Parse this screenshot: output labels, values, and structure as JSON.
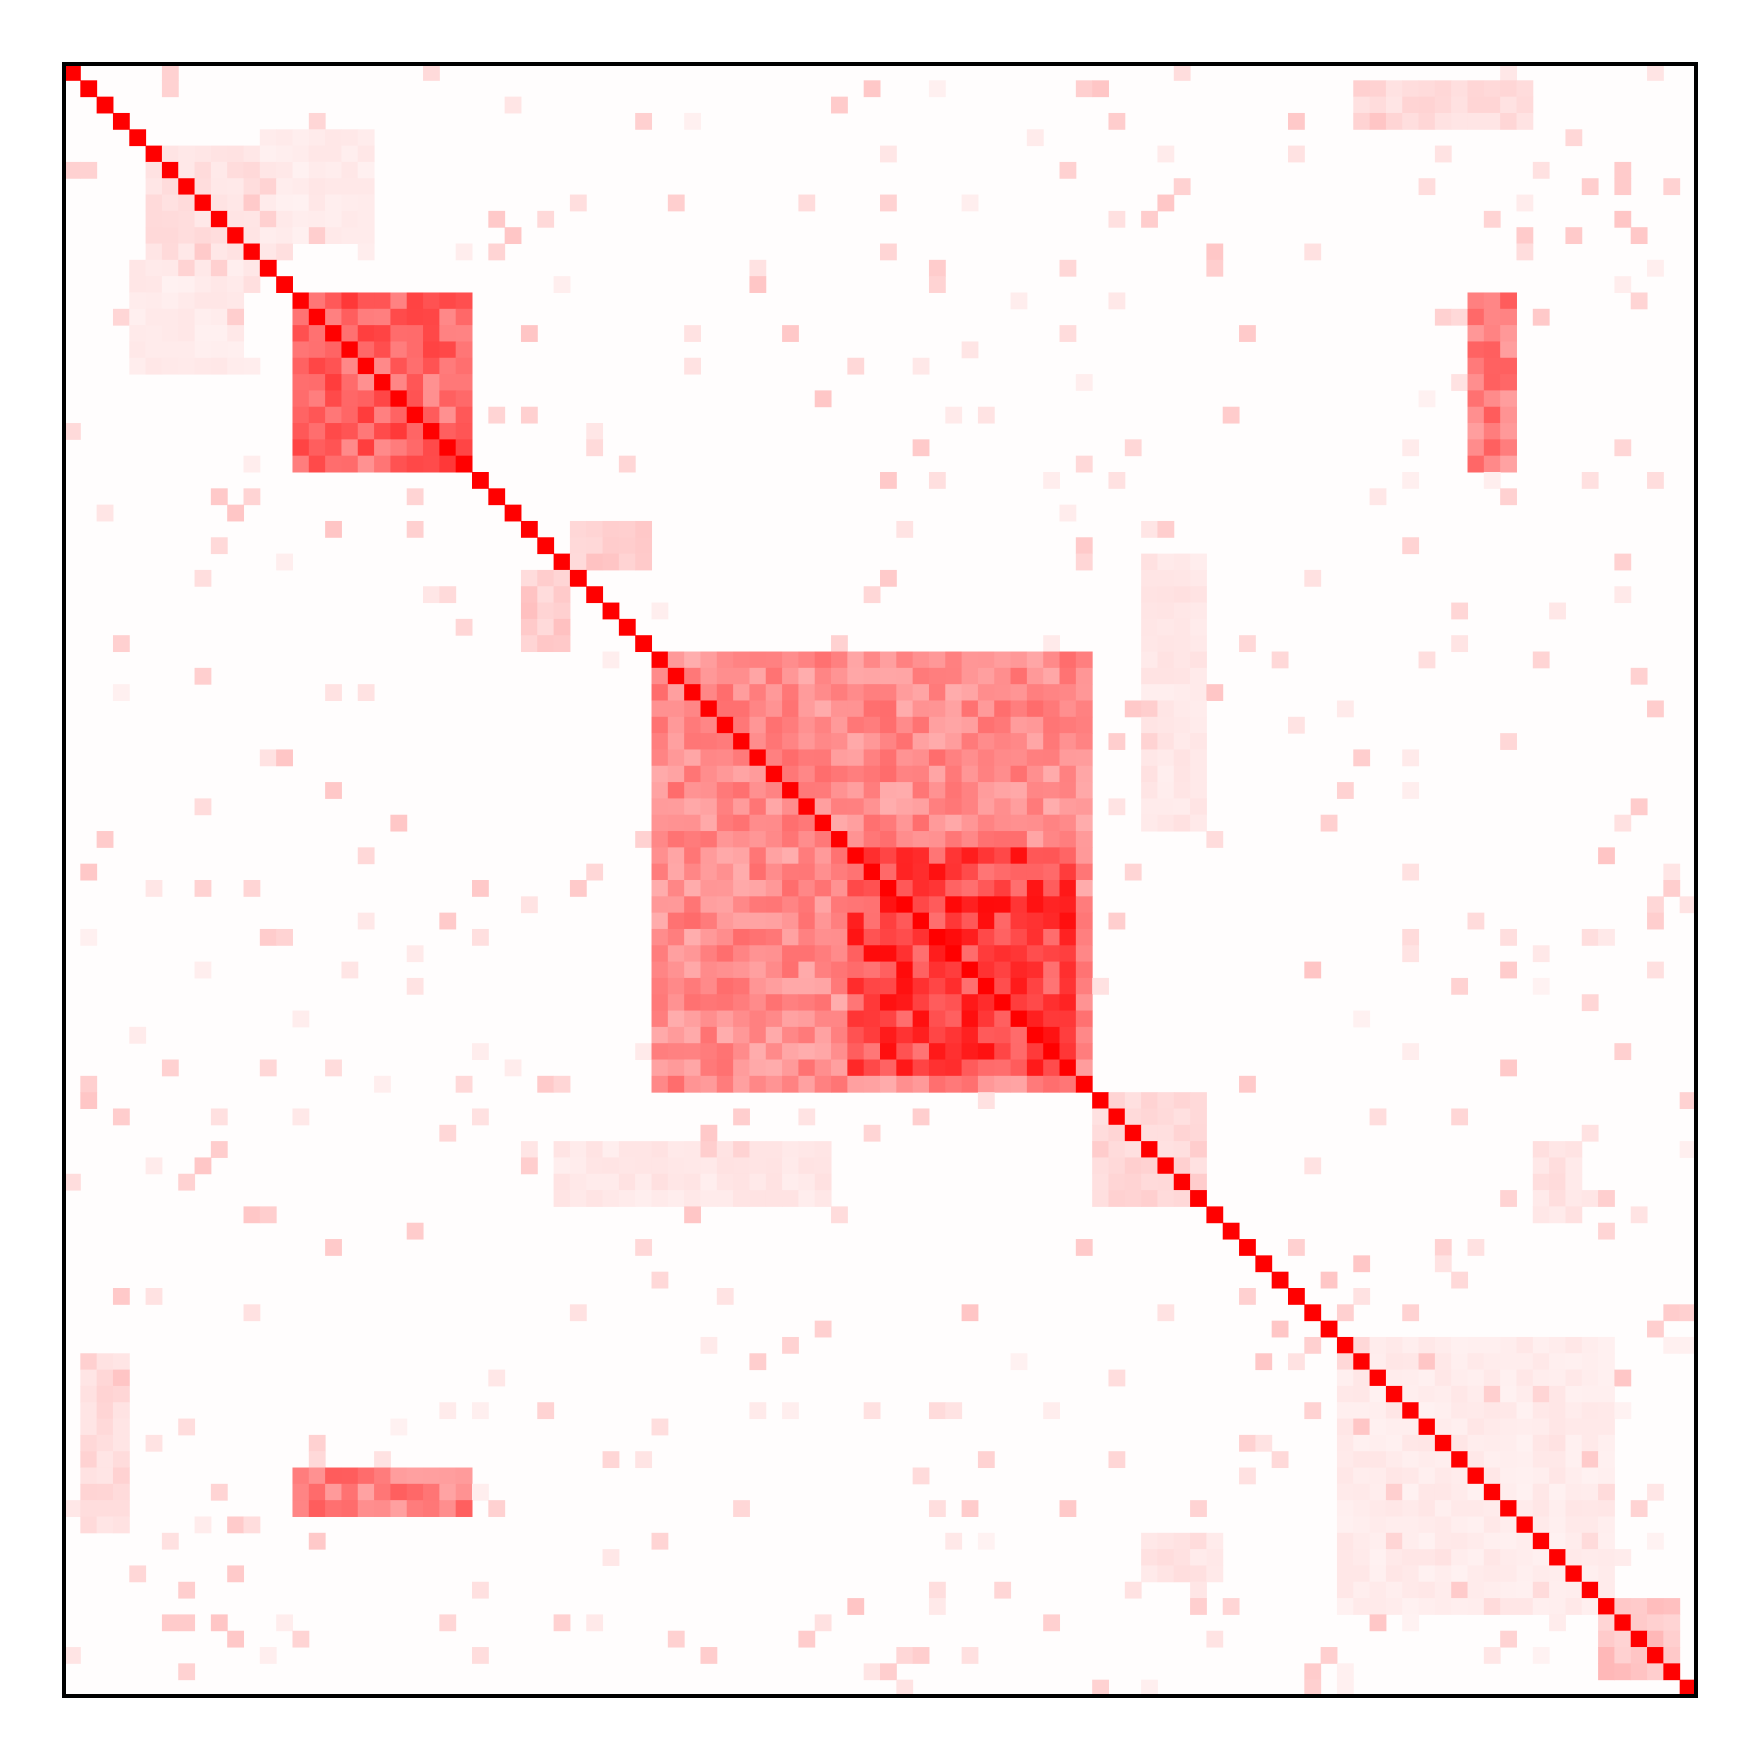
{
  "chart_data": {
    "type": "heatmap",
    "n": 100,
    "x_tick_labels": [],
    "y_tick_labels": [],
    "colorscale": [
      "#ffffff",
      "#ff0000"
    ],
    "zrange": [
      0,
      1
    ],
    "grid": false,
    "legend": "none",
    "colorbar": false,
    "diagonal_value": 1.0,
    "blocks": [
      {
        "rows": [
          14,
          24
        ],
        "cols": [
          14,
          24
        ],
        "value": 0.78
      },
      {
        "rows": [
          36,
          62
        ],
        "cols": [
          36,
          62
        ],
        "value": 0.58
      },
      {
        "rows": [
          48,
          61
        ],
        "cols": [
          48,
          61
        ],
        "value": 0.97
      },
      {
        "rows": [
          40,
          47
        ],
        "cols": [
          40,
          47
        ],
        "value": 0.55
      },
      {
        "rows": [
          14,
          24
        ],
        "cols": [
          86,
          88
        ],
        "value": 0.65
      },
      {
        "rows": [
          86,
          88
        ],
        "cols": [
          14,
          24
        ],
        "value": 0.65
      },
      {
        "rows": [
          28,
          30
        ],
        "cols": [
          31,
          35
        ],
        "value": 0.25
      },
      {
        "rows": [
          31,
          35
        ],
        "cols": [
          28,
          30
        ],
        "value": 0.25
      },
      {
        "rows": [
          1,
          3
        ],
        "cols": [
          79,
          89
        ],
        "value": 0.18
      },
      {
        "rows": [
          79,
          89
        ],
        "cols": [
          1,
          3
        ],
        "value": 0.18
      },
      {
        "rows": [
          5,
          11
        ],
        "cols": [
          5,
          11
        ],
        "value": 0.15
      },
      {
        "rows": [
          63,
          69
        ],
        "cols": [
          63,
          69
        ],
        "value": 0.2
      },
      {
        "rows": [
          66,
          69
        ],
        "cols": [
          30,
          46
        ],
        "value": 0.12
      },
      {
        "rows": [
          30,
          46
        ],
        "cols": [
          66,
          69
        ],
        "value": 0.12
      },
      {
        "rows": [
          78,
          94
        ],
        "cols": [
          78,
          94
        ],
        "value": 0.1
      },
      {
        "rows": [
          12,
          18
        ],
        "cols": [
          4,
          10
        ],
        "value": 0.1
      },
      {
        "rows": [
          4,
          10
        ],
        "cols": [
          12,
          18
        ],
        "value": 0.1
      },
      {
        "rows": [
          94,
          98
        ],
        "cols": [
          94,
          98
        ],
        "value": 0.28
      },
      {
        "rows": [
          90,
          92
        ],
        "cols": [
          66,
          70
        ],
        "value": 0.14
      },
      {
        "rows": [
          66,
          70
        ],
        "cols": [
          90,
          92
        ],
        "value": 0.14
      }
    ]
  }
}
